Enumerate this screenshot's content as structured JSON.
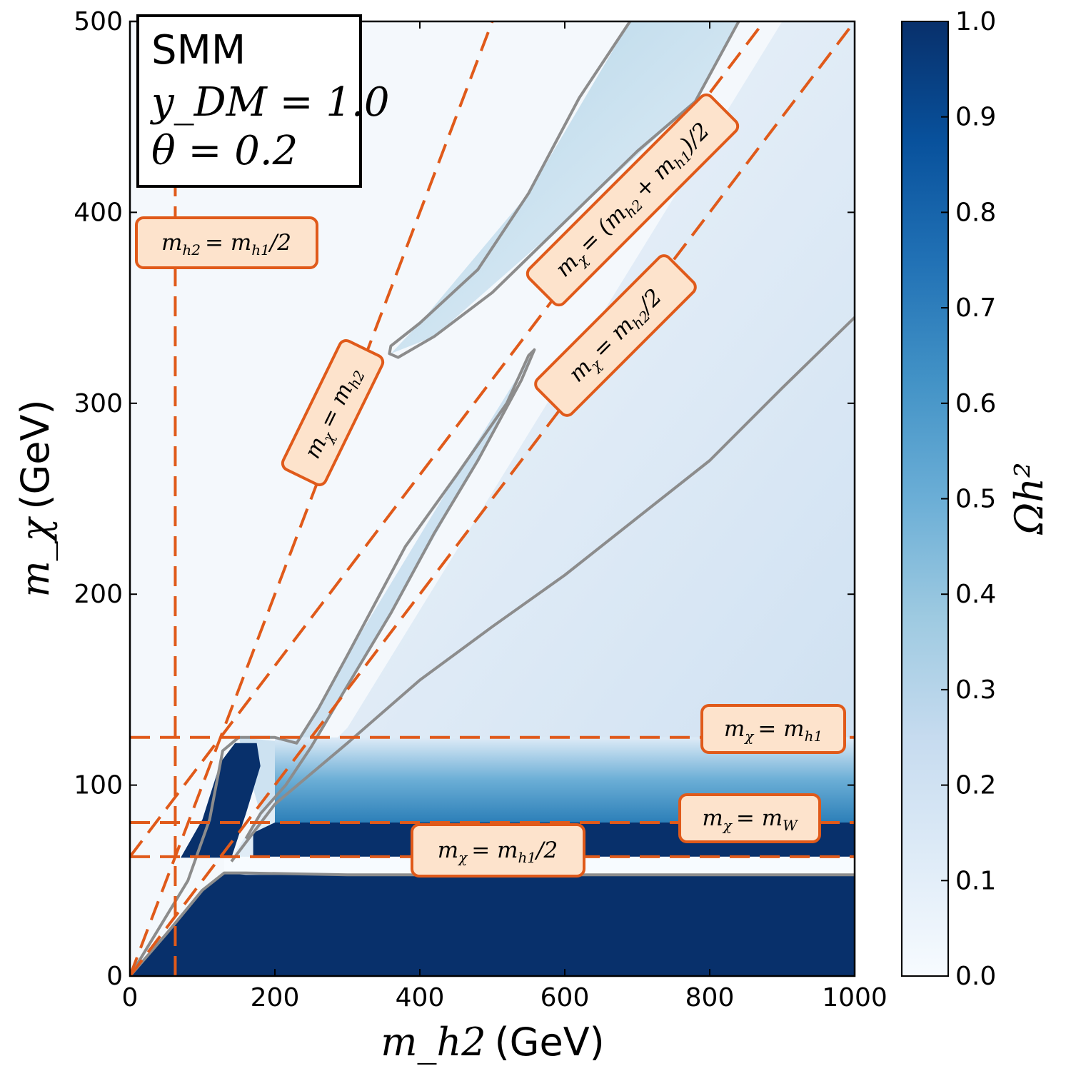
{
  "chart_data": {
    "type": "heatmap",
    "title": "",
    "xlabel_math": "m_h2",
    "xlabel_unit": "(GeV)",
    "ylabel_math": "m_χ",
    "ylabel_unit": "(GeV)",
    "xlim": [
      0,
      1000
    ],
    "ylim": [
      0,
      500
    ],
    "xticks": [
      0,
      200,
      400,
      600,
      800,
      1000
    ],
    "yticks": [
      0,
      100,
      200,
      300,
      400,
      500
    ],
    "colorbar": {
      "label": "Ωh²",
      "range": [
        0.0,
        1.0
      ],
      "ticks": [
        "0.0",
        "0.1",
        "0.2",
        "0.3",
        "0.4",
        "0.5",
        "0.6",
        "0.7",
        "0.8",
        "0.9",
        "1.0"
      ],
      "colormap": "Blues",
      "low_color": "#f7fbff",
      "high_color": "#08306b"
    },
    "info_box": {
      "model": "SMM",
      "coupling": "y_DM = 1.0",
      "mixing": "θ = 0.2"
    },
    "reference_lines": [
      {
        "label": "m_h2 = m_h1/2",
        "kind": "vertical",
        "x": 62.5
      },
      {
        "label": "m_χ = m_h1",
        "kind": "horizontal",
        "y": 125
      },
      {
        "label": "m_χ = m_W",
        "kind": "horizontal",
        "y": 80.4
      },
      {
        "label": "m_χ = m_h1/2",
        "kind": "horizontal",
        "y": 62.5
      },
      {
        "label": "m_χ = m_h2",
        "kind": "diagonal",
        "slope": 1.0,
        "intercept": 0
      },
      {
        "label": "m_χ = (m_h2 + m_h1)/2",
        "kind": "diagonal",
        "slope": 0.5,
        "intercept": 62.5
      },
      {
        "label": "m_χ = m_h2/2",
        "kind": "diagonal",
        "slope": 0.5,
        "intercept": 0
      }
    ],
    "annotations": {
      "vline_label": [
        "m",
        "h2",
        "= m",
        "h1",
        "/2"
      ],
      "hline_h1_label": [
        "m",
        "χ",
        "= m",
        "h1"
      ],
      "hline_w_label": [
        "m",
        "χ",
        "= m",
        "W"
      ],
      "hline_half_label": [
        "m",
        "χ",
        "= m",
        "h1",
        "/2"
      ],
      "diag_h2_label": [
        "m",
        "χ",
        "= m",
        "h2"
      ],
      "diag_sum_label": [
        "m",
        "χ",
        "= (m",
        "h2",
        "+ m",
        "h1",
        ")/2"
      ],
      "diag_half_label": [
        "m",
        "χ",
        "= m",
        "h2",
        "/2"
      ]
    },
    "relic_contour_level": 0.12,
    "relic_contours": [
      [
        [
          0,
          0
        ],
        [
          50,
          22
        ],
        [
          100,
          45
        ],
        [
          130,
          54
        ],
        [
          160,
          54
        ],
        [
          300,
          53
        ],
        [
          500,
          53
        ],
        [
          1000,
          53
        ]
      ],
      [
        [
          0,
          0
        ],
        [
          40,
          25
        ],
        [
          80,
          50
        ],
        [
          110,
          82
        ],
        [
          128,
          118
        ],
        [
          150,
          125
        ],
        [
          200,
          125
        ],
        [
          230,
          122
        ],
        [
          260,
          140
        ],
        [
          300,
          168
        ],
        [
          380,
          225
        ],
        [
          450,
          262
        ],
        [
          520,
          300
        ],
        [
          550,
          325
        ],
        [
          558,
          328
        ],
        [
          540,
          312
        ],
        [
          480,
          270
        ],
        [
          420,
          232
        ],
        [
          360,
          190
        ],
        [
          300,
          152
        ],
        [
          250,
          120
        ],
        [
          215,
          100
        ],
        [
          180,
          85
        ],
        [
          160,
          72
        ]
      ],
      [
        [
          140,
          60
        ],
        [
          200,
          90
        ],
        [
          300,
          122
        ],
        [
          400,
          155
        ],
        [
          500,
          183
        ],
        [
          600,
          210
        ],
        [
          700,
          240
        ],
        [
          800,
          270
        ],
        [
          900,
          308
        ],
        [
          1000,
          345
        ]
      ],
      [
        [
          690,
          500
        ],
        [
          620,
          460
        ],
        [
          550,
          410
        ],
        [
          480,
          370
        ],
        [
          400,
          342
        ],
        [
          360,
          330
        ],
        [
          358,
          326
        ],
        [
          370,
          324
        ],
        [
          420,
          335
        ],
        [
          500,
          358
        ],
        [
          600,
          395
        ],
        [
          700,
          432
        ],
        [
          780,
          458
        ],
        [
          840,
          500
        ]
      ]
    ]
  }
}
